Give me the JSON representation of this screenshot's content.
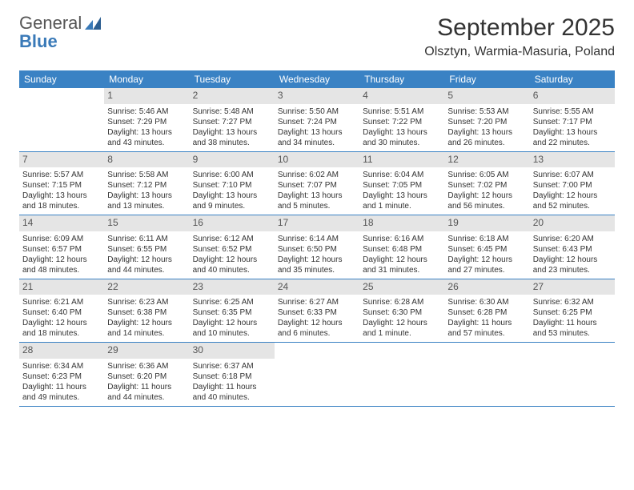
{
  "logo": {
    "text_top": "General",
    "text_bottom": "Blue"
  },
  "title": "September 2025",
  "location": "Olsztyn, Warmia-Masuria, Poland",
  "weekdays": [
    "Sunday",
    "Monday",
    "Tuesday",
    "Wednesday",
    "Thursday",
    "Friday",
    "Saturday"
  ],
  "colors": {
    "header_bg": "#3a82c4",
    "header_text": "#ffffff",
    "daynum_bg": "#e5e5e5",
    "border": "#3a82c4",
    "logo_blue": "#3a7ab8"
  },
  "weeks": [
    [
      {
        "n": "",
        "sr": "",
        "ss": "",
        "dl1": "",
        "dl2": "",
        "empty": true
      },
      {
        "n": "1",
        "sr": "Sunrise: 5:46 AM",
        "ss": "Sunset: 7:29 PM",
        "dl1": "Daylight: 13 hours",
        "dl2": "and 43 minutes."
      },
      {
        "n": "2",
        "sr": "Sunrise: 5:48 AM",
        "ss": "Sunset: 7:27 PM",
        "dl1": "Daylight: 13 hours",
        "dl2": "and 38 minutes."
      },
      {
        "n": "3",
        "sr": "Sunrise: 5:50 AM",
        "ss": "Sunset: 7:24 PM",
        "dl1": "Daylight: 13 hours",
        "dl2": "and 34 minutes."
      },
      {
        "n": "4",
        "sr": "Sunrise: 5:51 AM",
        "ss": "Sunset: 7:22 PM",
        "dl1": "Daylight: 13 hours",
        "dl2": "and 30 minutes."
      },
      {
        "n": "5",
        "sr": "Sunrise: 5:53 AM",
        "ss": "Sunset: 7:20 PM",
        "dl1": "Daylight: 13 hours",
        "dl2": "and 26 minutes."
      },
      {
        "n": "6",
        "sr": "Sunrise: 5:55 AM",
        "ss": "Sunset: 7:17 PM",
        "dl1": "Daylight: 13 hours",
        "dl2": "and 22 minutes."
      }
    ],
    [
      {
        "n": "7",
        "sr": "Sunrise: 5:57 AM",
        "ss": "Sunset: 7:15 PM",
        "dl1": "Daylight: 13 hours",
        "dl2": "and 18 minutes."
      },
      {
        "n": "8",
        "sr": "Sunrise: 5:58 AM",
        "ss": "Sunset: 7:12 PM",
        "dl1": "Daylight: 13 hours",
        "dl2": "and 13 minutes."
      },
      {
        "n": "9",
        "sr": "Sunrise: 6:00 AM",
        "ss": "Sunset: 7:10 PM",
        "dl1": "Daylight: 13 hours",
        "dl2": "and 9 minutes."
      },
      {
        "n": "10",
        "sr": "Sunrise: 6:02 AM",
        "ss": "Sunset: 7:07 PM",
        "dl1": "Daylight: 13 hours",
        "dl2": "and 5 minutes."
      },
      {
        "n": "11",
        "sr": "Sunrise: 6:04 AM",
        "ss": "Sunset: 7:05 PM",
        "dl1": "Daylight: 13 hours",
        "dl2": "and 1 minute."
      },
      {
        "n": "12",
        "sr": "Sunrise: 6:05 AM",
        "ss": "Sunset: 7:02 PM",
        "dl1": "Daylight: 12 hours",
        "dl2": "and 56 minutes."
      },
      {
        "n": "13",
        "sr": "Sunrise: 6:07 AM",
        "ss": "Sunset: 7:00 PM",
        "dl1": "Daylight: 12 hours",
        "dl2": "and 52 minutes."
      }
    ],
    [
      {
        "n": "14",
        "sr": "Sunrise: 6:09 AM",
        "ss": "Sunset: 6:57 PM",
        "dl1": "Daylight: 12 hours",
        "dl2": "and 48 minutes."
      },
      {
        "n": "15",
        "sr": "Sunrise: 6:11 AM",
        "ss": "Sunset: 6:55 PM",
        "dl1": "Daylight: 12 hours",
        "dl2": "and 44 minutes."
      },
      {
        "n": "16",
        "sr": "Sunrise: 6:12 AM",
        "ss": "Sunset: 6:52 PM",
        "dl1": "Daylight: 12 hours",
        "dl2": "and 40 minutes."
      },
      {
        "n": "17",
        "sr": "Sunrise: 6:14 AM",
        "ss": "Sunset: 6:50 PM",
        "dl1": "Daylight: 12 hours",
        "dl2": "and 35 minutes."
      },
      {
        "n": "18",
        "sr": "Sunrise: 6:16 AM",
        "ss": "Sunset: 6:48 PM",
        "dl1": "Daylight: 12 hours",
        "dl2": "and 31 minutes."
      },
      {
        "n": "19",
        "sr": "Sunrise: 6:18 AM",
        "ss": "Sunset: 6:45 PM",
        "dl1": "Daylight: 12 hours",
        "dl2": "and 27 minutes."
      },
      {
        "n": "20",
        "sr": "Sunrise: 6:20 AM",
        "ss": "Sunset: 6:43 PM",
        "dl1": "Daylight: 12 hours",
        "dl2": "and 23 minutes."
      }
    ],
    [
      {
        "n": "21",
        "sr": "Sunrise: 6:21 AM",
        "ss": "Sunset: 6:40 PM",
        "dl1": "Daylight: 12 hours",
        "dl2": "and 18 minutes."
      },
      {
        "n": "22",
        "sr": "Sunrise: 6:23 AM",
        "ss": "Sunset: 6:38 PM",
        "dl1": "Daylight: 12 hours",
        "dl2": "and 14 minutes."
      },
      {
        "n": "23",
        "sr": "Sunrise: 6:25 AM",
        "ss": "Sunset: 6:35 PM",
        "dl1": "Daylight: 12 hours",
        "dl2": "and 10 minutes."
      },
      {
        "n": "24",
        "sr": "Sunrise: 6:27 AM",
        "ss": "Sunset: 6:33 PM",
        "dl1": "Daylight: 12 hours",
        "dl2": "and 6 minutes."
      },
      {
        "n": "25",
        "sr": "Sunrise: 6:28 AM",
        "ss": "Sunset: 6:30 PM",
        "dl1": "Daylight: 12 hours",
        "dl2": "and 1 minute."
      },
      {
        "n": "26",
        "sr": "Sunrise: 6:30 AM",
        "ss": "Sunset: 6:28 PM",
        "dl1": "Daylight: 11 hours",
        "dl2": "and 57 minutes."
      },
      {
        "n": "27",
        "sr": "Sunrise: 6:32 AM",
        "ss": "Sunset: 6:25 PM",
        "dl1": "Daylight: 11 hours",
        "dl2": "and 53 minutes."
      }
    ],
    [
      {
        "n": "28",
        "sr": "Sunrise: 6:34 AM",
        "ss": "Sunset: 6:23 PM",
        "dl1": "Daylight: 11 hours",
        "dl2": "and 49 minutes."
      },
      {
        "n": "29",
        "sr": "Sunrise: 6:36 AM",
        "ss": "Sunset: 6:20 PM",
        "dl1": "Daylight: 11 hours",
        "dl2": "and 44 minutes."
      },
      {
        "n": "30",
        "sr": "Sunrise: 6:37 AM",
        "ss": "Sunset: 6:18 PM",
        "dl1": "Daylight: 11 hours",
        "dl2": "and 40 minutes."
      },
      {
        "n": "",
        "sr": "",
        "ss": "",
        "dl1": "",
        "dl2": "",
        "empty": true
      },
      {
        "n": "",
        "sr": "",
        "ss": "",
        "dl1": "",
        "dl2": "",
        "empty": true
      },
      {
        "n": "",
        "sr": "",
        "ss": "",
        "dl1": "",
        "dl2": "",
        "empty": true
      },
      {
        "n": "",
        "sr": "",
        "ss": "",
        "dl1": "",
        "dl2": "",
        "empty": true
      }
    ]
  ]
}
